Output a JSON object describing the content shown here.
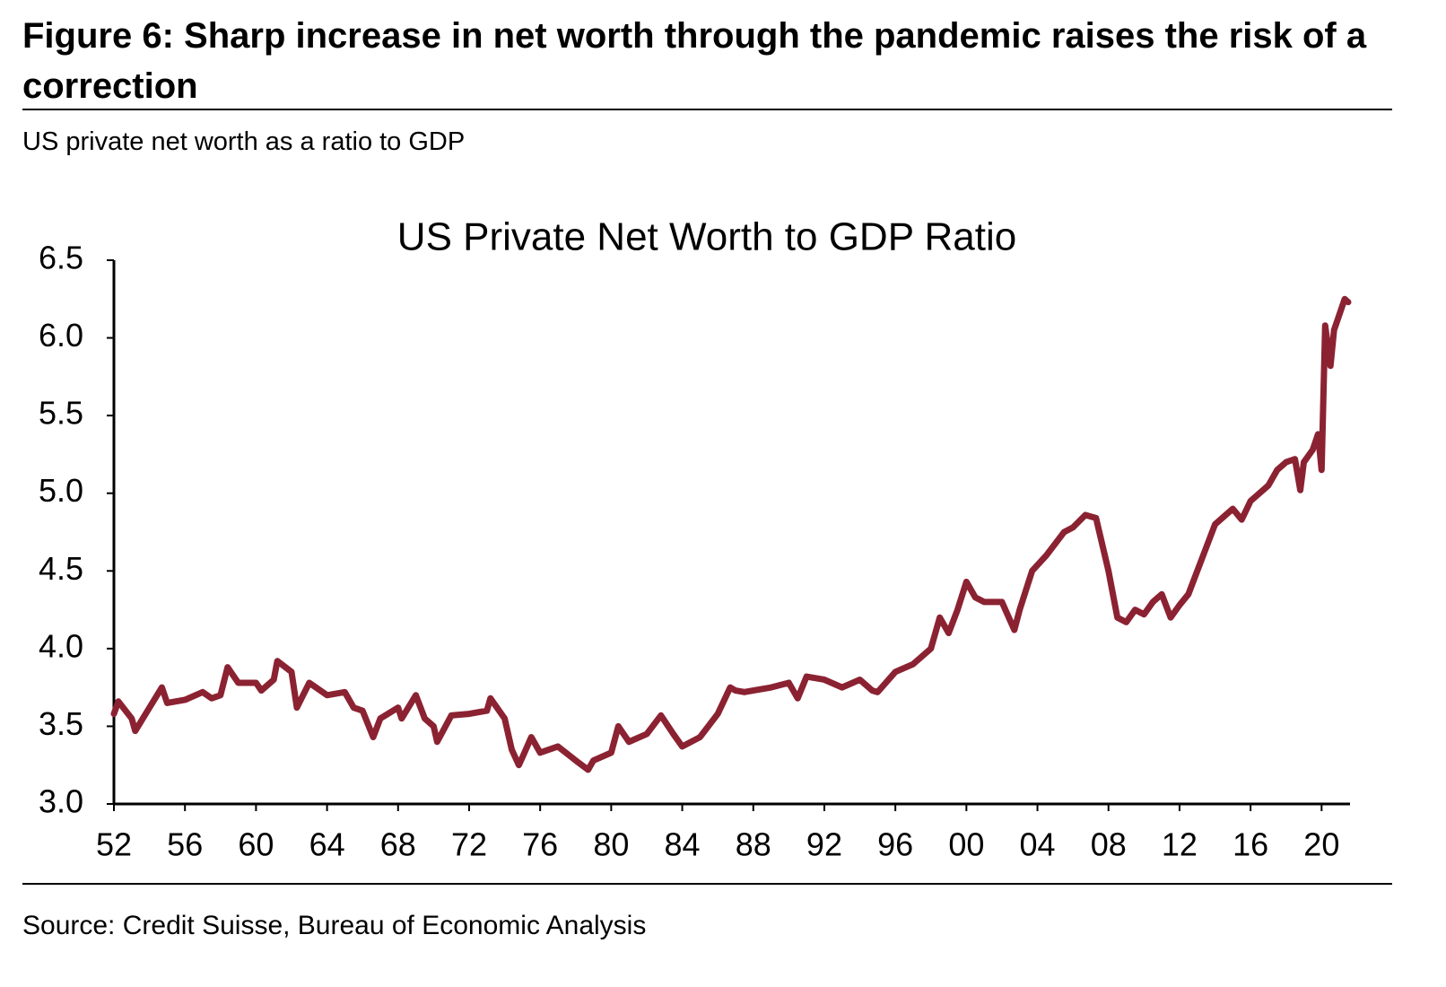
{
  "chart_data": {
    "type": "line",
    "title": "Figure 6: Sharp increase in net worth through the pandemic raises the risk of a correction",
    "subtitle": "US private net worth as a ratio to GDP",
    "chart_title": "US Private Net Worth to GDP Ratio",
    "source": "Source: Credit Suisse, Bureau of Economic Analysis",
    "x": [
      1952,
      1952.25,
      1953,
      1953.2,
      1954,
      1954.7,
      1955,
      1956,
      1957,
      1957.5,
      1958,
      1958.4,
      1959,
      1960,
      1960.3,
      1961,
      1961.2,
      1962,
      1962.3,
      1963,
      1964,
      1965,
      1965.5,
      1966,
      1966.6,
      1967,
      1968,
      1968.2,
      1969,
      1969.5,
      1970,
      1970.2,
      1971,
      1972,
      1973,
      1973.2,
      1974,
      1974.4,
      1974.8,
      1975,
      1975.5,
      1976,
      1977,
      1978,
      1978.7,
      1979,
      1980,
      1980.4,
      1981,
      1982,
      1982.8,
      1983.5,
      1984,
      1985,
      1986,
      1986.7,
      1987,
      1987.5,
      1988,
      1989,
      1990,
      1990.5,
      1991,
      1992,
      1993,
      1994,
      1994.7,
      1995,
      1996,
      1997,
      1998,
      1998.5,
      1999,
      1999.5,
      2000,
      2000.5,
      2001,
      2002,
      2002.7,
      2003,
      2003.7,
      2004.5,
      2005.5,
      2006,
      2006.7,
      2007.3,
      2008,
      2008.5,
      2009,
      2009.5,
      2010,
      2010.5,
      2011,
      2011.5,
      2012,
      2012.5,
      2013,
      2013.5,
      2014,
      2014.5,
      2015,
      2015.5,
      2016,
      2017,
      2017.5,
      2018,
      2018.5,
      2018.8,
      2019,
      2019.5,
      2019.8,
      2020,
      2020.2,
      2020.5,
      2020.7,
      2021,
      2021.3,
      2021.5
    ],
    "series": [
      {
        "name": "US Private Net Worth to GDP Ratio",
        "color": "#8b2232",
        "values": [
          3.58,
          3.66,
          3.55,
          3.47,
          3.62,
          3.75,
          3.65,
          3.67,
          3.72,
          3.68,
          3.7,
          3.88,
          3.78,
          3.78,
          3.73,
          3.8,
          3.92,
          3.85,
          3.62,
          3.78,
          3.7,
          3.72,
          3.62,
          3.6,
          3.43,
          3.55,
          3.62,
          3.55,
          3.7,
          3.55,
          3.5,
          3.4,
          3.57,
          3.58,
          3.6,
          3.68,
          3.55,
          3.35,
          3.25,
          3.3,
          3.43,
          3.33,
          3.37,
          3.28,
          3.22,
          3.28,
          3.33,
          3.5,
          3.4,
          3.45,
          3.57,
          3.45,
          3.37,
          3.43,
          3.58,
          3.75,
          3.73,
          3.72,
          3.73,
          3.75,
          3.78,
          3.68,
          3.82,
          3.8,
          3.75,
          3.8,
          3.73,
          3.72,
          3.85,
          3.9,
          4.0,
          4.2,
          4.1,
          4.25,
          4.43,
          4.33,
          4.3,
          4.3,
          4.12,
          4.25,
          4.5,
          4.6,
          4.75,
          4.78,
          4.86,
          4.84,
          4.5,
          4.2,
          4.17,
          4.25,
          4.22,
          4.3,
          4.35,
          4.2,
          4.28,
          4.35,
          4.5,
          4.65,
          4.8,
          4.85,
          4.9,
          4.83,
          4.95,
          5.05,
          5.15,
          5.2,
          5.22,
          5.02,
          5.2,
          5.28,
          5.38,
          5.15,
          6.08,
          5.82,
          6.05,
          6.15,
          6.25,
          6.23
        ]
      }
    ],
    "xlim": [
      1952,
      2021.6
    ],
    "xticks": [
      {
        "value": 1952,
        "label": "52"
      },
      {
        "value": 1956,
        "label": "56"
      },
      {
        "value": 1960,
        "label": "60"
      },
      {
        "value": 1964,
        "label": "64"
      },
      {
        "value": 1968,
        "label": "68"
      },
      {
        "value": 1972,
        "label": "72"
      },
      {
        "value": 1976,
        "label": "76"
      },
      {
        "value": 1980,
        "label": "80"
      },
      {
        "value": 1984,
        "label": "84"
      },
      {
        "value": 1988,
        "label": "88"
      },
      {
        "value": 1992,
        "label": "92"
      },
      {
        "value": 1996,
        "label": "96"
      },
      {
        "value": 2000,
        "label": "00"
      },
      {
        "value": 2004,
        "label": "04"
      },
      {
        "value": 2008,
        "label": "08"
      },
      {
        "value": 2012,
        "label": "12"
      },
      {
        "value": 2016,
        "label": "16"
      },
      {
        "value": 2020,
        "label": "20"
      }
    ],
    "ylim": [
      3,
      6.5
    ],
    "yticks": [
      {
        "value": 3,
        "label": "3.0"
      },
      3.5,
      {
        "value": 4,
        "label": "4.0"
      },
      4.5,
      {
        "value": 5,
        "label": "5.0"
      },
      5.5,
      {
        "value": 6,
        "label": "6.0"
      },
      6.5
    ],
    "grid": false
  }
}
